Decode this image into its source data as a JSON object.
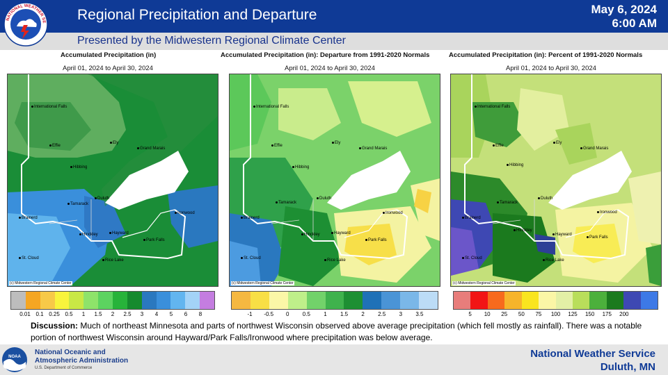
{
  "header": {
    "title": "Regional Precipitation and Departure",
    "date": "May 6, 2024",
    "time": "6:00 AM",
    "subtitle": "Presented by the Midwestern Regional Climate Center",
    "logo_text": "NATIONAL WEATHER SERVICE",
    "logo_icon": "nws-logo-icon"
  },
  "panels": [
    {
      "title": "Accumulated Precipitation (in)",
      "date_range": "April 01, 2024 to April 30, 2024",
      "credit": "(c) Midwestern Regional Climate Center",
      "legend": {
        "colors": [
          "#bdbdbd",
          "#f5a623",
          "#f7c948",
          "#f8f43c",
          "#c9e845",
          "#8ee36a",
          "#5cd360",
          "#27b33a",
          "#158a2e",
          "#2a78bf",
          "#3a8fdb",
          "#62b5ef",
          "#a3d3f7",
          "#c47de0"
        ],
        "ticks": [
          "0.01",
          "0.1",
          "0.25",
          "0.5",
          "1",
          "1.5",
          "2",
          "2.5",
          "3",
          "4",
          "5",
          "6",
          "8"
        ]
      }
    },
    {
      "title": "Accumulated Precipitation (in): Departure from 1991-2020 Normals",
      "date_range": "April 01, 2024 to April 30, 2024",
      "credit": "(c) Midwestern Regional Climate Center",
      "legend": {
        "colors": [
          "#f5b841",
          "#f8df45",
          "#fbf7a7",
          "#bfef8a",
          "#72d26a",
          "#3fb24d",
          "#1d8f33",
          "#1f71b7",
          "#4a94d6",
          "#7ab7e8",
          "#bcdcf6"
        ],
        "ticks": [
          "-1",
          "-0.5",
          "0",
          "0.5",
          "1",
          "1.5",
          "2",
          "2.5",
          "3",
          "3.5"
        ]
      }
    },
    {
      "title": "Accumulated Precipitation (in): Percent of 1991-2020 Normals",
      "date_range": "April 01, 2024 to April 30, 2024",
      "credit": "(c) Midwestern Regional Climate Center",
      "legend": {
        "colors": [
          "#e87d7b",
          "#f21515",
          "#f76a1d",
          "#f6b42b",
          "#f9e51f",
          "#fbf6a6",
          "#e3f0a6",
          "#b9de5b",
          "#4cb03c",
          "#1b7a1e",
          "#3e48b3",
          "#3d79e6"
        ],
        "ticks": [
          "5",
          "10",
          "25",
          "50",
          "75",
          "100",
          "125",
          "150",
          "175",
          "200"
        ]
      }
    }
  ],
  "cities": {
    "p1": [
      "International Falls",
      "Effie",
      "Ely",
      "Grand Marais",
      "Hibbing",
      "Tamarack",
      "Duluth",
      "Ironwood",
      "Brainerd",
      "Hinckley",
      "Hayward",
      "Park Falls",
      "St. Cloud",
      "Rice Lake"
    ],
    "p2": [
      "International Falls",
      "Effie",
      "Ely",
      "Grand Marais",
      "Hibbing",
      "Tamarack",
      "Duluth",
      "Ironwood",
      "Brainerd",
      "Hinckley",
      "Hayward",
      "Park Falls",
      "St. Cloud",
      "Rice Lake"
    ],
    "p3": [
      "International Falls",
      "Effie",
      "Ely",
      "Grand Marais",
      "Hibbing",
      "Tamarack",
      "Duluth",
      "Ironwood",
      "Brainerd",
      "Hinckley",
      "Hayward",
      "Park Falls",
      "St. Cloud",
      "Rice Lake"
    ]
  },
  "discussion": {
    "label": "Discussion:",
    "text": "Much of northeast Minnesota and parts of northwest Wisconsin observed above average  precipitation (which fell mostly as rainfall). There was a notable portion of northwest Wisconsin around Hayward/Park Falls/Ironwood where precipitation was below average."
  },
  "footer": {
    "noaa_line1": "National Oceanic and",
    "noaa_line2": "Atmospheric Administration",
    "noaa_dept": "U.S. Department of Commerce",
    "noaa_logo_text": "NOAA",
    "nws_line1": "National Weather Service",
    "nws_line2": "Duluth, MN"
  }
}
